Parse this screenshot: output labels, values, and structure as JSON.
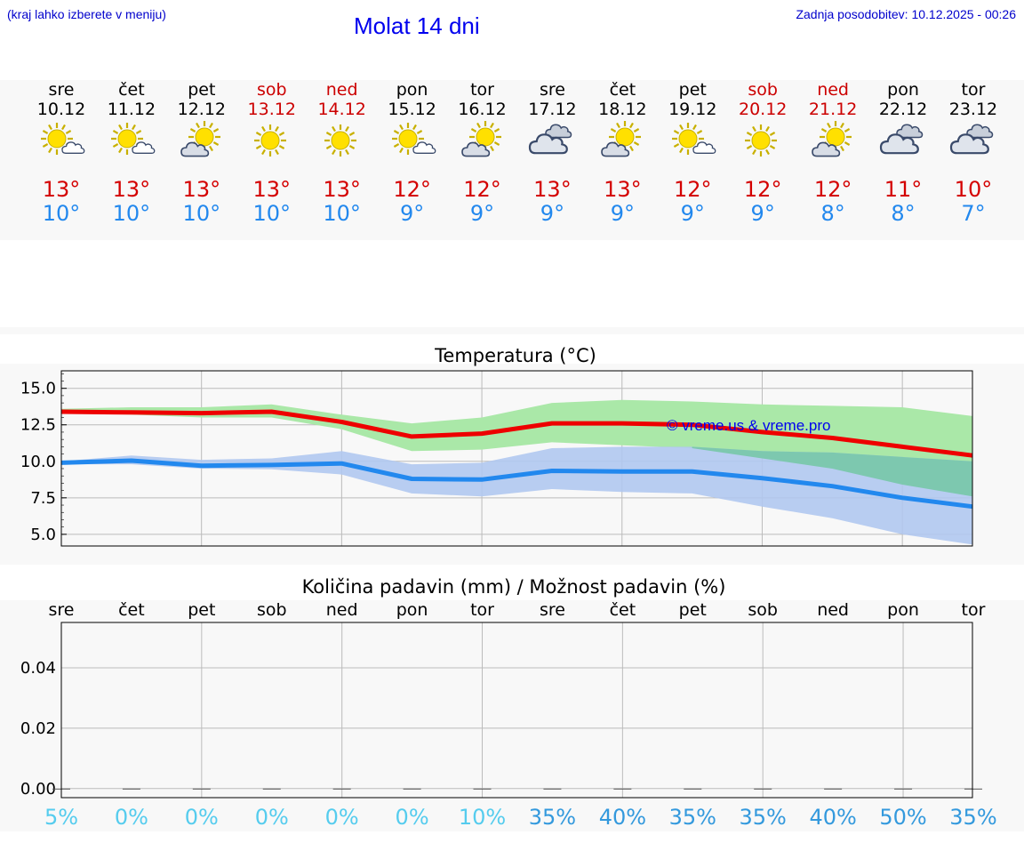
{
  "header": {
    "note": "(kraj lahko izberete v meniju)",
    "title": "Molat 14 dni",
    "update": "Zadnja posodobitev: 10.12.2025 - 00:26"
  },
  "days": [
    {
      "name": "sre",
      "date": "10.12",
      "weekend": false,
      "icon": "sun-small-cloud-icon",
      "tmax": "13°",
      "tmin": "10°"
    },
    {
      "name": "čet",
      "date": "11.12",
      "weekend": false,
      "icon": "sun-small-cloud-icon",
      "tmax": "13°",
      "tmin": "10°"
    },
    {
      "name": "pet",
      "date": "12.12",
      "weekend": false,
      "icon": "sun-grey-cloud-icon",
      "tmax": "13°",
      "tmin": "10°"
    },
    {
      "name": "sob",
      "date": "13.12",
      "weekend": true,
      "icon": "sun-icon",
      "tmax": "13°",
      "tmin": "10°"
    },
    {
      "name": "ned",
      "date": "14.12",
      "weekend": true,
      "icon": "sun-icon",
      "tmax": "13°",
      "tmin": "10°"
    },
    {
      "name": "pon",
      "date": "15.12",
      "weekend": false,
      "icon": "sun-small-cloud-icon",
      "tmax": "12°",
      "tmin": "9°"
    },
    {
      "name": "tor",
      "date": "16.12",
      "weekend": false,
      "icon": "sun-grey-cloud-icon",
      "tmax": "12°",
      "tmin": "9°"
    },
    {
      "name": "sre",
      "date": "17.12",
      "weekend": false,
      "icon": "cloudy-icon",
      "tmax": "13°",
      "tmin": "9°"
    },
    {
      "name": "čet",
      "date": "18.12",
      "weekend": false,
      "icon": "sun-grey-cloud-icon",
      "tmax": "13°",
      "tmin": "9°"
    },
    {
      "name": "pet",
      "date": "19.12",
      "weekend": false,
      "icon": "sun-small-cloud-icon",
      "tmax": "12°",
      "tmin": "9°"
    },
    {
      "name": "sob",
      "date": "20.12",
      "weekend": true,
      "icon": "sun-icon",
      "tmax": "12°",
      "tmin": "9°"
    },
    {
      "name": "ned",
      "date": "21.12",
      "weekend": true,
      "icon": "sun-grey-cloud-icon",
      "tmax": "12°",
      "tmin": "8°"
    },
    {
      "name": "pon",
      "date": "22.12",
      "weekend": false,
      "icon": "cloudy-icon",
      "tmax": "11°",
      "tmin": "8°"
    },
    {
      "name": "tor",
      "date": "23.12",
      "weekend": false,
      "icon": "cloudy-icon",
      "tmax": "10°",
      "tmin": "7°"
    }
  ],
  "colors": {
    "max_line": "#ee0000",
    "min_line": "#2288ee",
    "max_band": "#aae8a8",
    "min_band": "#b0c8f0",
    "overlap_band": "#78c8a8",
    "weekend_text": "#cc0000",
    "chance_low": "#55ccee",
    "chance_high": "#3399dd",
    "grid": "#bbbbbb",
    "watermark": "#0000ee"
  },
  "chart_data": [
    {
      "type": "line",
      "title": "Temperatura (°C)",
      "watermark": "© vreme.us & vreme.pro",
      "ylim": [
        4.2,
        16.2
      ],
      "yticks": [
        5.0,
        7.5,
        10.0,
        12.5,
        15.0
      ],
      "ytick_labels": [
        "5.0",
        "7.5",
        "10.0",
        "12.5",
        "15.0"
      ],
      "xlim": [
        0,
        13
      ],
      "x": [
        0,
        1,
        2,
        3,
        4,
        5,
        6,
        7,
        8,
        9,
        10,
        11,
        12,
        13
      ],
      "series": [
        {
          "name": "max",
          "values": [
            13.4,
            13.35,
            13.3,
            13.4,
            12.7,
            11.7,
            11.9,
            12.6,
            12.6,
            12.5,
            12.0,
            11.6,
            11.0,
            10.4
          ],
          "band_low": [
            13.3,
            13.2,
            13.0,
            13.0,
            12.2,
            10.7,
            10.8,
            11.3,
            11.1,
            10.9,
            10.2,
            9.5,
            8.4,
            7.6
          ],
          "band_high": [
            13.6,
            13.7,
            13.7,
            13.9,
            13.2,
            12.6,
            13.0,
            14.0,
            14.2,
            14.1,
            13.9,
            13.8,
            13.7,
            13.1
          ]
        },
        {
          "name": "min",
          "values": [
            9.9,
            10.05,
            9.7,
            9.75,
            9.85,
            8.8,
            8.75,
            9.35,
            9.3,
            9.3,
            8.85,
            8.3,
            7.5,
            6.9
          ],
          "band_low": [
            9.8,
            9.8,
            9.5,
            9.45,
            9.1,
            7.8,
            7.6,
            8.1,
            7.9,
            7.8,
            6.9,
            6.1,
            5.0,
            4.3
          ],
          "band_high": [
            10.0,
            10.4,
            10.1,
            10.2,
            10.7,
            9.8,
            9.9,
            10.9,
            11.0,
            11.0,
            10.7,
            10.6,
            10.3,
            10.0
          ]
        }
      ]
    },
    {
      "type": "bar",
      "title": "Količina padavin (mm) / Možnost padavin (%)",
      "ylim": [
        -0.003,
        0.055
      ],
      "yticks": [
        0.0,
        0.02,
        0.04
      ],
      "ytick_labels": [
        "0.00",
        "0.02",
        "0.04"
      ],
      "categories": [
        "sre",
        "čet",
        "pet",
        "sob",
        "ned",
        "pon",
        "tor",
        "sre",
        "čet",
        "pet",
        "sob",
        "ned",
        "pon",
        "tor"
      ],
      "values": [
        0,
        0,
        0,
        0,
        0,
        0,
        0,
        0,
        0,
        0,
        0,
        0,
        0,
        0
      ],
      "chance_labels": [
        "5%",
        "0%",
        "0%",
        "0%",
        "0%",
        "0%",
        "10%",
        "35%",
        "40%",
        "35%",
        "35%",
        "40%",
        "50%",
        "35%"
      ],
      "chance_values": [
        5,
        0,
        0,
        0,
        0,
        0,
        10,
        35,
        40,
        35,
        35,
        40,
        50,
        35
      ]
    }
  ]
}
